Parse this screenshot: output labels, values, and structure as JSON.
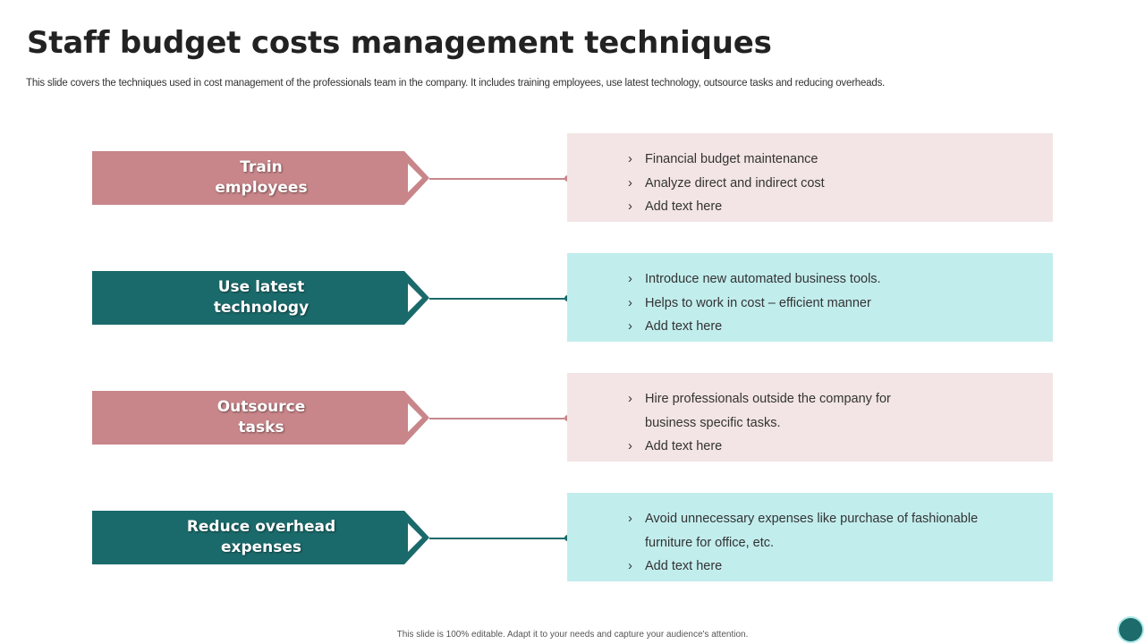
{
  "title": "Staff budget costs management techniques",
  "subtitle": "This slide covers the  techniques used in cost management of the professionals team in the company. It includes  training employees, use latest technology, outsource tasks and reducing overheads.",
  "colors": {
    "rose": "#c8868a",
    "teal": "#1b6a6b",
    "rose_light": "#f3e5e5",
    "teal_light": "#c2eded"
  },
  "rows": [
    {
      "label_line1": "Train",
      "label_line2": "employees",
      "theme": "rose",
      "bullets": [
        {
          "text": "Financial budget maintenance",
          "bullet": true
        },
        {
          "text": "Analyze direct and indirect cost",
          "bullet": true
        },
        {
          "text": "Add text here",
          "bullet": true
        }
      ]
    },
    {
      "label_line1": "Use latest",
      "label_line2": "technology",
      "theme": "teal",
      "bullets": [
        {
          "text": "Introduce new automated business tools.",
          "bullet": true
        },
        {
          "text": "Helps to work in cost – efficient manner",
          "bullet": true
        },
        {
          "text": "Add text here",
          "bullet": true
        }
      ]
    },
    {
      "label_line1": "Outsource",
      "label_line2": "tasks",
      "theme": "rose",
      "bullets": [
        {
          "text": "Hire professionals outside the company for",
          "bullet": true
        },
        {
          "text": "business specific tasks.",
          "bullet": false
        },
        {
          "text": "Add text here",
          "bullet": true
        }
      ]
    },
    {
      "label_line1": "Reduce overhead",
      "label_line2": "expenses",
      "theme": "teal",
      "bullets": [
        {
          "text": "Avoid unnecessary expenses  like purchase of fashionable",
          "bullet": true
        },
        {
          "text": "furniture for office, etc.",
          "bullet": false
        },
        {
          "text": "Add text here",
          "bullet": true
        }
      ]
    }
  ],
  "bullet_icon": "chevron-right-icon",
  "footer": "This slide is 100% editable.  Adapt it to your needs and capture your audience's attention."
}
